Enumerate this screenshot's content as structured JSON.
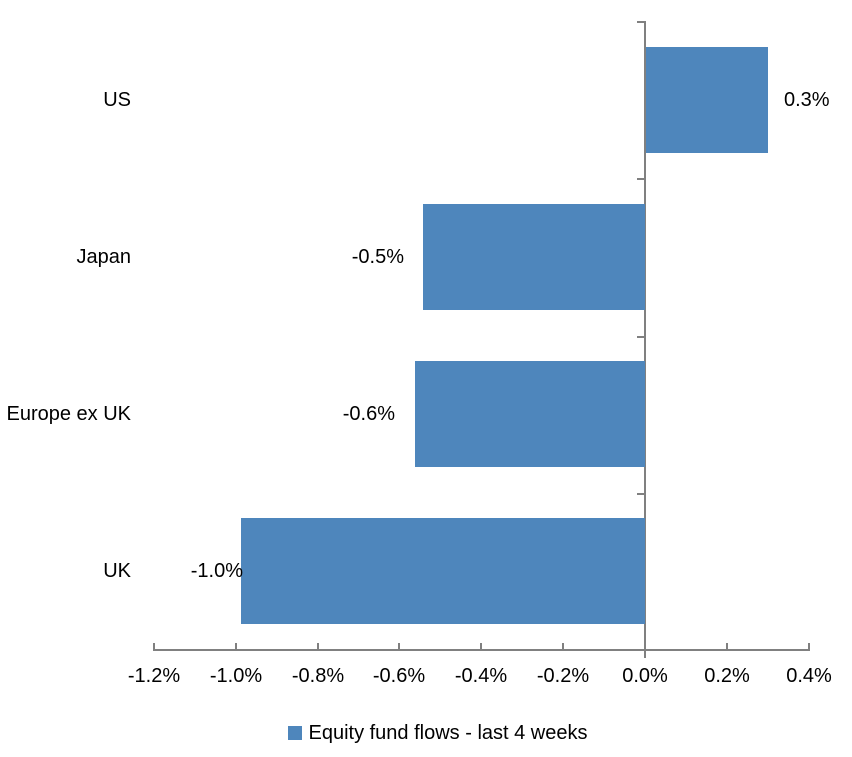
{
  "chart_data": {
    "type": "bar",
    "orientation": "horizontal",
    "categories": [
      "US",
      "Japan",
      "Europe ex UK",
      "UK"
    ],
    "series": [
      {
        "name": "Equity fund flows - last 4 weeks",
        "values": [
          0.3,
          -0.5,
          -0.6,
          -1.0
        ],
        "labels": [
          "0.3%",
          "-0.5%",
          "-0.6%",
          "-1.0%"
        ],
        "plotted_values": [
          0.298,
          -0.543,
          -0.562,
          -0.988
        ]
      }
    ],
    "xlim": [
      -1.2,
      0.4
    ],
    "x_ticks": [
      -1.2,
      -1.0,
      -0.8,
      -0.6,
      -0.4,
      -0.2,
      0.0,
      0.2,
      0.4
    ],
    "x_tick_labels": [
      "-1.2%",
      "-1.0%",
      "-0.8%",
      "-0.6%",
      "-0.4%",
      "-0.2%",
      "0.0%",
      "0.2%",
      "0.4%"
    ],
    "grid": false,
    "legend_position": "bottom-center",
    "value_label_position": "outside-end",
    "colors": {
      "bar": "#4E86BC",
      "axis": "#808080",
      "text": "#000000",
      "background": "#FFFFFF"
    }
  }
}
